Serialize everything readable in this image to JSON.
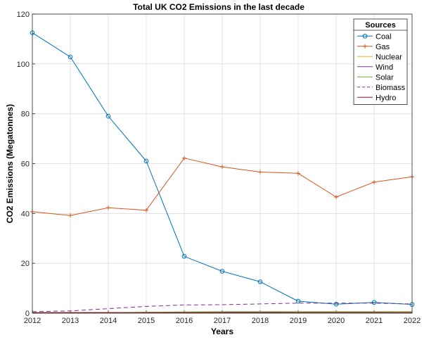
{
  "chart_data": {
    "type": "line",
    "title": "Total UK CO2 Emissions in the last decade",
    "xlabel": "Years",
    "ylabel": "CO2 Emissions (Megatonnes)",
    "x": [
      2012,
      2013,
      2014,
      2015,
      2016,
      2017,
      2018,
      2019,
      2020,
      2021,
      2022
    ],
    "xlim": [
      2012,
      2022
    ],
    "ylim": [
      0,
      120
    ],
    "yticks": [
      0,
      20,
      40,
      60,
      80,
      100,
      120
    ],
    "grid": true,
    "legend": {
      "title": "Sources",
      "position": "top-right"
    },
    "series": [
      {
        "name": "Coal",
        "color": "#0072BD",
        "marker": "circle",
        "dash": "solid",
        "values": [
          112.5,
          102.8,
          79.0,
          61.0,
          22.8,
          16.8,
          12.6,
          4.8,
          3.6,
          4.3,
          3.5
        ]
      },
      {
        "name": "Gas",
        "color": "#D95319",
        "marker": "plus",
        "dash": "solid",
        "values": [
          40.7,
          39.2,
          42.3,
          41.3,
          62.2,
          58.7,
          56.6,
          56.1,
          46.6,
          52.6,
          54.7
        ]
      },
      {
        "name": "Nuclear",
        "color": "#EDB120",
        "marker": "none",
        "dash": "solid",
        "values": [
          0.2,
          0.2,
          0.2,
          0.2,
          0.2,
          0.2,
          0.2,
          0.2,
          0.2,
          0.2,
          0.2
        ]
      },
      {
        "name": "Wind",
        "color": "#7E2F8E",
        "marker": "none",
        "dash": "solid",
        "values": [
          0.1,
          0.2,
          0.2,
          0.3,
          0.3,
          0.4,
          0.4,
          0.5,
          0.5,
          0.5,
          0.6
        ]
      },
      {
        "name": "Solar",
        "color": "#77AC30",
        "marker": "none",
        "dash": "solid",
        "values": [
          0.0,
          0.1,
          0.2,
          0.4,
          0.5,
          0.6,
          0.6,
          0.6,
          0.6,
          0.6,
          0.6
        ]
      },
      {
        "name": "Biomass",
        "color": "#7E2F8E",
        "marker": "none",
        "dash": "dashed",
        "values": [
          0.6,
          0.9,
          1.8,
          2.7,
          3.3,
          3.4,
          3.7,
          4.0,
          4.0,
          4.0,
          3.7
        ]
      },
      {
        "name": "Hydro",
        "color": "#A2142F",
        "marker": "none",
        "dash": "solid",
        "values": [
          0.2,
          0.2,
          0.2,
          0.2,
          0.2,
          0.2,
          0.2,
          0.2,
          0.2,
          0.2,
          0.2
        ]
      }
    ]
  }
}
